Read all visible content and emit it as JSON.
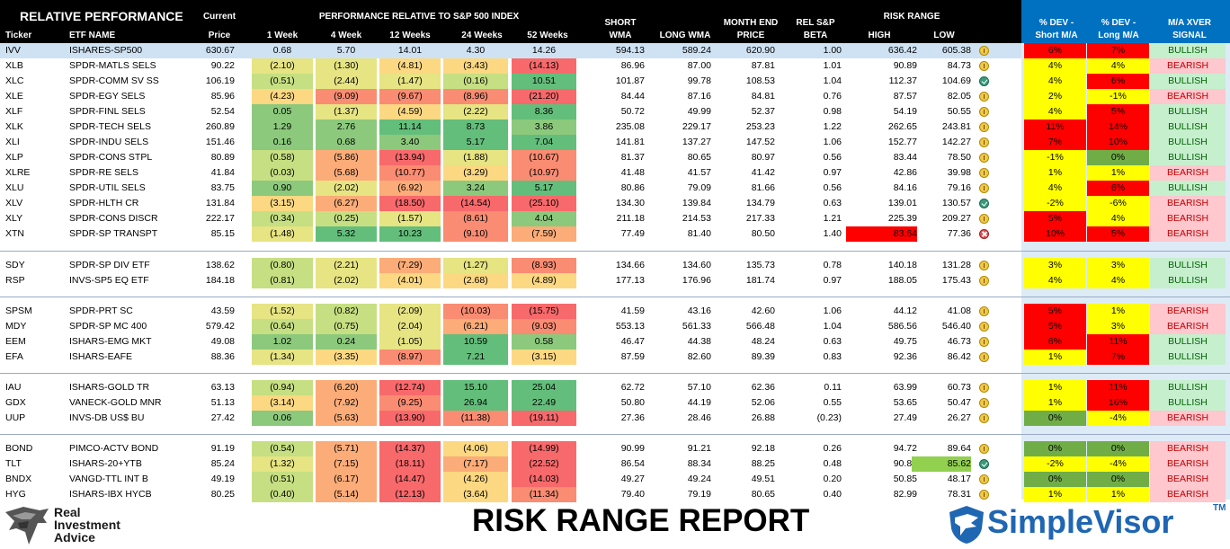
{
  "title": "RISK RANGE REPORT",
  "brand_left": {
    "line1": "Real",
    "line2": "Investment",
    "line3": "Advice"
  },
  "brand_right": "SimpleVisor",
  "brand_right_tm": "TM",
  "headers": {
    "relative_performance": "RELATIVE PERFORMANCE",
    "ticker": "Ticker",
    "etf_name": "ETF NAME",
    "current": "Current",
    "price": "Price",
    "perf_group": "PERFORMANCE RELATIVE TO S&P 500 INDEX",
    "w1": "1 Week",
    "w4": "4 Week",
    "w12": "12 Weeks",
    "w24": "24 Weeks",
    "w52": "52 Weeks",
    "short_wma_1": "SHORT",
    "short_wma_2": "WMA",
    "long_wma": "LONG WMA",
    "month_end_1": "MONTH END",
    "month_end_2": "PRICE",
    "rel_sp_1": "REL S&P",
    "rel_sp_2": "BETA",
    "risk_range": "RISK RANGE",
    "high": "HIGH",
    "low": "LOW",
    "dev_short_1": "% DEV -",
    "dev_short_2": "Short M/A",
    "dev_long_1": "% DEV -",
    "dev_long_2": "Long M/A",
    "xver_1": "M/A XVER",
    "xver_2": "SIGNAL"
  },
  "colors": {
    "header_bg": "#000000",
    "signal_header_bg": "#0070c0",
    "ivv_highlight": "#cfe2f3",
    "dev_positive_low": "#ffff00",
    "dev_positive_high": "#ff0000",
    "dev_negative": "#ffff00",
    "dev_zero": "#70ad47",
    "bullish_bg": "#c6efce",
    "bullish_text": "#006100",
    "bearish_bg": "#ffc7ce",
    "bearish_text": "#c00000",
    "high_breach": "#ff0000",
    "low_breach": "#92d050"
  },
  "chart_data": {
    "type": "table",
    "title": "RISK RANGE REPORT",
    "columns": [
      "Ticker",
      "ETF NAME",
      "Current Price",
      "1 Week",
      "4 Week",
      "12 Weeks",
      "24 Weeks",
      "52 Weeks",
      "SHORT WMA",
      "LONG WMA",
      "MONTH END PRICE",
      "REL S&P BETA",
      "HIGH",
      "LOW",
      "% DEV - Short M/A",
      "% DEV - Long M/A",
      "M/A XVER SIGNAL"
    ],
    "groups": [
      [
        {
          "t": "IVV",
          "n": "ISHARES-SP500",
          "p": "630.67",
          "perf": [
            "0.68",
            "5.70",
            "14.01",
            "4.30",
            "14.26"
          ],
          "sw": "594.13",
          "lw": "589.24",
          "me": "620.90",
          "b": "1.00",
          "hi": "636.42",
          "lo": "605.38",
          "ic": "hold",
          "ds": "6%",
          "dl": "7%",
          "sig": "BULLISH",
          "hl": "ivv"
        },
        {
          "t": "XLB",
          "n": "SPDR-MATLS SELS",
          "p": "90.22",
          "perf": [
            "(2.10)",
            "(1.30)",
            "(4.81)",
            "(3.43)",
            "(14.13)"
          ],
          "sw": "86.96",
          "lw": "87.00",
          "me": "87.81",
          "b": "1.01",
          "hi": "90.89",
          "lo": "84.73",
          "ic": "hold",
          "ds": "4%",
          "dl": "4%",
          "sig": "BEARISH"
        },
        {
          "t": "XLC",
          "n": "SPDR-COMM SV SS",
          "p": "106.19",
          "perf": [
            "(0.51)",
            "(2.44)",
            "(1.47)",
            "(0.16)",
            "10.51"
          ],
          "sw": "101.87",
          "lw": "99.78",
          "me": "108.53",
          "b": "1.04",
          "hi": "112.37",
          "lo": "104.69",
          "ic": "check",
          "ds": "4%",
          "dl": "6%",
          "sig": "BULLISH"
        },
        {
          "t": "XLE",
          "n": "SPDR-EGY SELS",
          "p": "85.96",
          "perf": [
            "(4.23)",
            "(9.09)",
            "(9.67)",
            "(8.96)",
            "(21.20)"
          ],
          "sw": "84.44",
          "lw": "87.16",
          "me": "84.81",
          "b": "0.76",
          "hi": "87.57",
          "lo": "82.05",
          "ic": "hold",
          "ds": "2%",
          "dl": "-1%",
          "sig": "BEARISH"
        },
        {
          "t": "XLF",
          "n": "SPDR-FINL SELS",
          "p": "52.54",
          "perf": [
            "0.05",
            "(1.37)",
            "(4.59)",
            "(2.22)",
            "8.36"
          ],
          "sw": "50.72",
          "lw": "49.99",
          "me": "52.37",
          "b": "0.98",
          "hi": "54.19",
          "lo": "50.55",
          "ic": "hold",
          "ds": "4%",
          "dl": "5%",
          "sig": "BULLISH"
        },
        {
          "t": "XLK",
          "n": "SPDR-TECH SELS",
          "p": "260.89",
          "perf": [
            "1.29",
            "2.76",
            "11.14",
            "8.73",
            "3.86"
          ],
          "sw": "235.08",
          "lw": "229.17",
          "me": "253.23",
          "b": "1.22",
          "hi": "262.65",
          "lo": "243.81",
          "ic": "hold",
          "ds": "11%",
          "dl": "14%",
          "sig": "BULLISH"
        },
        {
          "t": "XLI",
          "n": "SPDR-INDU SELS",
          "p": "151.46",
          "perf": [
            "0.16",
            "0.68",
            "3.40",
            "5.17",
            "7.04"
          ],
          "sw": "141.81",
          "lw": "137.27",
          "me": "147.52",
          "b": "1.06",
          "hi": "152.77",
          "lo": "142.27",
          "ic": "hold",
          "ds": "7%",
          "dl": "10%",
          "sig": "BULLISH"
        },
        {
          "t": "XLP",
          "n": "SPDR-CONS STPL",
          "p": "80.89",
          "perf": [
            "(0.58)",
            "(5.86)",
            "(13.94)",
            "(1.88)",
            "(10.67)"
          ],
          "sw": "81.37",
          "lw": "80.65",
          "me": "80.97",
          "b": "0.56",
          "hi": "83.44",
          "lo": "78.50",
          "ic": "hold",
          "ds": "-1%",
          "dl": "0%",
          "sig": "BULLISH"
        },
        {
          "t": "XLRE",
          "n": "SPDR-RE SELS",
          "p": "41.84",
          "perf": [
            "(0.03)",
            "(5.68)",
            "(10.77)",
            "(3.29)",
            "(10.97)"
          ],
          "sw": "41.48",
          "lw": "41.57",
          "me": "41.42",
          "b": "0.97",
          "hi": "42.86",
          "lo": "39.98",
          "ic": "hold",
          "ds": "1%",
          "dl": "1%",
          "sig": "BEARISH"
        },
        {
          "t": "XLU",
          "n": "SPDR-UTIL SELS",
          "p": "83.75",
          "perf": [
            "0.90",
            "(2.02)",
            "(6.92)",
            "3.24",
            "5.17"
          ],
          "sw": "80.86",
          "lw": "79.09",
          "me": "81.66",
          "b": "0.56",
          "hi": "84.16",
          "lo": "79.16",
          "ic": "hold",
          "ds": "4%",
          "dl": "6%",
          "sig": "BULLISH"
        },
        {
          "t": "XLV",
          "n": "SPDR-HLTH CR",
          "p": "131.84",
          "perf": [
            "(3.15)",
            "(6.27)",
            "(18.50)",
            "(14.54)",
            "(25.10)"
          ],
          "sw": "134.30",
          "lw": "139.84",
          "me": "134.79",
          "b": "0.63",
          "hi": "139.01",
          "lo": "130.57",
          "ic": "check",
          "ds": "-2%",
          "dl": "-6%",
          "sig": "BEARISH"
        },
        {
          "t": "XLY",
          "n": "SPDR-CONS DISCR",
          "p": "222.17",
          "perf": [
            "(0.34)",
            "(0.25)",
            "(1.57)",
            "(8.61)",
            "4.04"
          ],
          "sw": "211.18",
          "lw": "214.53",
          "me": "217.33",
          "b": "1.21",
          "hi": "225.39",
          "lo": "209.27",
          "ic": "hold",
          "ds": "5%",
          "dl": "4%",
          "sig": "BEARISH"
        },
        {
          "t": "XTN",
          "n": "SPDR-SP TRANSPT",
          "p": "85.15",
          "perf": [
            "(1.48)",
            "5.32",
            "10.23",
            "(9.10)",
            "(7.59)"
          ],
          "sw": "77.49",
          "lw": "81.40",
          "me": "80.50",
          "b": "1.40",
          "hi": "83.64",
          "lo": "77.36",
          "ic": "x",
          "ds": "10%",
          "dl": "5%",
          "sig": "BEARISH",
          "hl": "high"
        }
      ],
      [
        {
          "t": "SDY",
          "n": "SPDR-SP DIV ETF",
          "p": "138.62",
          "perf": [
            "(0.80)",
            "(2.21)",
            "(7.29)",
            "(1.27)",
            "(8.93)"
          ],
          "sw": "134.66",
          "lw": "134.60",
          "me": "135.73",
          "b": "0.78",
          "hi": "140.18",
          "lo": "131.28",
          "ic": "hold",
          "ds": "3%",
          "dl": "3%",
          "sig": "BULLISH"
        },
        {
          "t": "RSP",
          "n": "INVS-SP5 EQ ETF",
          "p": "184.18",
          "perf": [
            "(0.81)",
            "(2.02)",
            "(4.01)",
            "(2.68)",
            "(4.89)"
          ],
          "sw": "177.13",
          "lw": "176.96",
          "me": "181.74",
          "b": "0.97",
          "hi": "188.05",
          "lo": "175.43",
          "ic": "hold",
          "ds": "4%",
          "dl": "4%",
          "sig": "BULLISH"
        }
      ],
      [
        {
          "t": "SPSM",
          "n": "SPDR-PRT SC",
          "p": "43.59",
          "perf": [
            "(1.52)",
            "(0.82)",
            "(2.09)",
            "(10.03)",
            "(15.75)"
          ],
          "sw": "41.59",
          "lw": "43.16",
          "me": "42.60",
          "b": "1.06",
          "hi": "44.12",
          "lo": "41.08",
          "ic": "hold",
          "ds": "5%",
          "dl": "1%",
          "sig": "BEARISH"
        },
        {
          "t": "MDY",
          "n": "SPDR-SP MC 400",
          "p": "579.42",
          "perf": [
            "(0.64)",
            "(0.75)",
            "(2.04)",
            "(6.21)",
            "(9.03)"
          ],
          "sw": "553.13",
          "lw": "561.33",
          "me": "566.48",
          "b": "1.04",
          "hi": "586.56",
          "lo": "546.40",
          "ic": "hold",
          "ds": "5%",
          "dl": "3%",
          "sig": "BEARISH"
        },
        {
          "t": "EEM",
          "n": "ISHARS-EMG MKT",
          "p": "49.08",
          "perf": [
            "1.02",
            "0.24",
            "(1.05)",
            "10.59",
            "0.58"
          ],
          "sw": "46.47",
          "lw": "44.38",
          "me": "48.24",
          "b": "0.63",
          "hi": "49.75",
          "lo": "46.73",
          "ic": "hold",
          "ds": "6%",
          "dl": "11%",
          "sig": "BULLISH"
        },
        {
          "t": "EFA",
          "n": "ISHARS-EAFE",
          "p": "88.36",
          "perf": [
            "(1.34)",
            "(3.35)",
            "(8.97)",
            "7.21",
            "(3.15)"
          ],
          "sw": "87.59",
          "lw": "82.60",
          "me": "89.39",
          "b": "0.83",
          "hi": "92.36",
          "lo": "86.42",
          "ic": "hold",
          "ds": "1%",
          "dl": "7%",
          "sig": "BULLISH"
        }
      ],
      [
        {
          "t": "IAU",
          "n": "ISHARS-GOLD TR",
          "p": "63.13",
          "perf": [
            "(0.94)",
            "(6.20)",
            "(12.74)",
            "15.10",
            "25.04"
          ],
          "sw": "62.72",
          "lw": "57.10",
          "me": "62.36",
          "b": "0.11",
          "hi": "63.99",
          "lo": "60.73",
          "ic": "hold",
          "ds": "1%",
          "dl": "11%",
          "sig": "BULLISH"
        },
        {
          "t": "GDX",
          "n": "VANECK-GOLD MNR",
          "p": "51.13",
          "perf": [
            "(3.14)",
            "(7.92)",
            "(9.25)",
            "26.94",
            "22.49"
          ],
          "sw": "50.80",
          "lw": "44.19",
          "me": "52.06",
          "b": "0.55",
          "hi": "53.65",
          "lo": "50.47",
          "ic": "hold",
          "ds": "1%",
          "dl": "16%",
          "sig": "BULLISH"
        },
        {
          "t": "UUP",
          "n": "INVS-DB US$ BU",
          "p": "27.42",
          "perf": [
            "0.06",
            "(5.63)",
            "(13.90)",
            "(11.38)",
            "(19.11)"
          ],
          "sw": "27.36",
          "lw": "28.46",
          "me": "26.88",
          "b": "(0.23)",
          "hi": "27.49",
          "lo": "26.27",
          "ic": "hold",
          "ds": "0%",
          "dl": "-4%",
          "sig": "BEARISH"
        }
      ],
      [
        {
          "t": "BOND",
          "n": "PIMCO-ACTV BOND",
          "p": "91.19",
          "perf": [
            "(0.54)",
            "(5.71)",
            "(14.37)",
            "(4.06)",
            "(14.99)"
          ],
          "sw": "90.99",
          "lw": "91.21",
          "me": "92.18",
          "b": "0.26",
          "hi": "94.72",
          "lo": "89.64",
          "ic": "hold",
          "ds": "0%",
          "dl": "0%",
          "sig": "BEARISH"
        },
        {
          "t": "TLT",
          "n": "ISHARS-20+YTB",
          "p": "85.24",
          "perf": [
            "(1.32)",
            "(7.15)",
            "(18.11)",
            "(7.17)",
            "(22.52)"
          ],
          "sw": "86.54",
          "lw": "88.34",
          "me": "88.25",
          "b": "0.48",
          "hi": "90.88",
          "lo": "85.62",
          "ic": "check",
          "ds": "-2%",
          "dl": "-4%",
          "sig": "BEARISH",
          "hl": "low"
        },
        {
          "t": "BNDX",
          "n": "VANGD-TTL INT B",
          "p": "49.19",
          "perf": [
            "(0.51)",
            "(6.17)",
            "(14.47)",
            "(4.26)",
            "(14.03)"
          ],
          "sw": "49.27",
          "lw": "49.24",
          "me": "49.51",
          "b": "0.20",
          "hi": "50.85",
          "lo": "48.17",
          "ic": "hold",
          "ds": "0%",
          "dl": "0%",
          "sig": "BEARISH"
        },
        {
          "t": "HYG",
          "n": "ISHARS-IBX HYCB",
          "p": "80.25",
          "perf": [
            "(0.40)",
            "(5.14)",
            "(12.13)",
            "(3.64)",
            "(11.34)"
          ],
          "sw": "79.40",
          "lw": "79.19",
          "me": "80.65",
          "b": "0.40",
          "hi": "82.99",
          "lo": "78.31",
          "ic": "hold",
          "ds": "1%",
          "dl": "1%",
          "sig": "BEARISH"
        }
      ]
    ]
  }
}
